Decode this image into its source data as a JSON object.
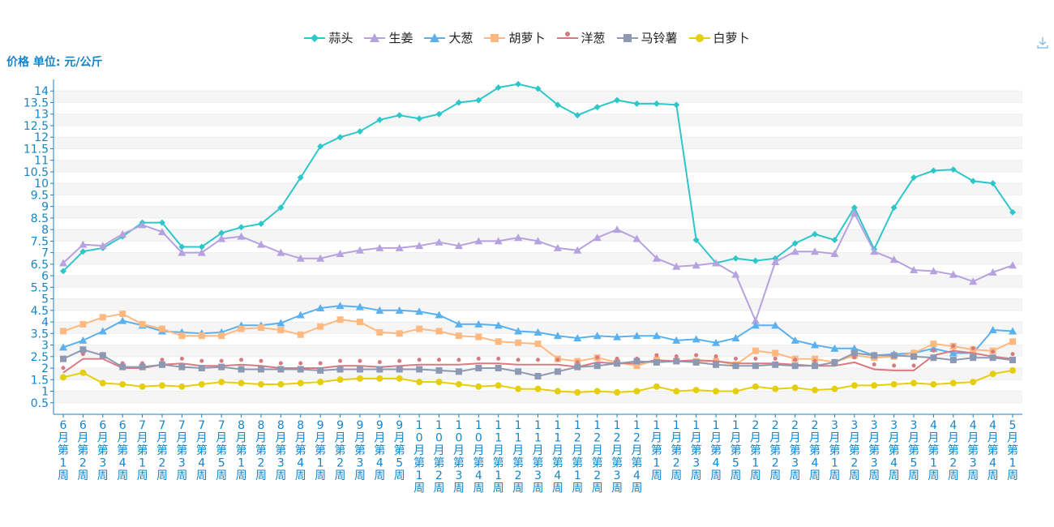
{
  "header": {
    "y_unit_label": "价格 单位: 元/公斤"
  },
  "toolbar": {
    "download_icon": "download-icon"
  },
  "chart_data": {
    "type": "line",
    "title": "",
    "xlabel": "",
    "ylabel": "价格 单位: 元/公斤",
    "ylim": [
      0,
      14.5
    ],
    "yticks": [
      0.5,
      1,
      1.5,
      2,
      2.5,
      3,
      3.5,
      4,
      4.5,
      5,
      5.5,
      6,
      6.5,
      7,
      7.5,
      8,
      8.5,
      9,
      9.5,
      10,
      10.5,
      11,
      11.5,
      12,
      12.5,
      13,
      13.5,
      14
    ],
    "grid": true,
    "legend_position": "top-center",
    "categories": [
      "6月第1周",
      "6月第2周",
      "6月第3周",
      "6月第4周",
      "7月第1周",
      "7月第2周",
      "7月第3周",
      "7月第4周",
      "7月第5周",
      "8月第1周",
      "8月第2周",
      "8月第3周",
      "8月第4周",
      "9月第1周",
      "9月第2周",
      "9月第3周",
      "9月第4周",
      "9月第5周",
      "10月第1周",
      "10月第2周",
      "10月第3周",
      "10月第4周",
      "11月第1周",
      "11月第2周",
      "11月第3周",
      "11月第4周",
      "12月第1周",
      "12月第2周",
      "12月第3周",
      "12月第4周",
      "1月第1周",
      "1月第2周",
      "1月第3周",
      "1月第4周",
      "1月第5周",
      "2月第1周",
      "2月第2周",
      "2月第3周",
      "2月第4周",
      "3月第1周",
      "3月第2周",
      "3月第3周",
      "3月第4周",
      "3月第5周",
      "4月第1周",
      "4月第2周",
      "4月第3周",
      "4月第4周",
      "5月第1周"
    ],
    "series": [
      {
        "name": "蒜头",
        "color": "#2ec7c9",
        "marker": "diamond",
        "values": [
          6.2,
          7.05,
          7.2,
          7.7,
          8.3,
          8.3,
          7.25,
          7.25,
          7.85,
          8.1,
          8.25,
          8.95,
          10.25,
          11.6,
          12.0,
          12.25,
          12.75,
          12.95,
          12.8,
          13.0,
          13.5,
          13.6,
          14.15,
          14.3,
          14.1,
          13.4,
          12.95,
          13.3,
          13.6,
          13.45,
          13.45,
          13.4,
          7.55,
          6.55,
          6.75,
          6.65,
          6.75,
          7.4,
          7.8,
          7.55,
          8.95,
          7.15,
          8.95,
          10.25,
          10.55,
          10.6,
          10.1,
          10.0,
          8.75
        ]
      },
      {
        "name": "生姜",
        "color": "#b6a2de",
        "marker": "triangle",
        "values": [
          6.55,
          7.35,
          7.3,
          7.8,
          8.2,
          7.9,
          7.0,
          7.0,
          7.6,
          7.7,
          7.35,
          7.0,
          6.75,
          6.75,
          6.95,
          7.1,
          7.2,
          7.2,
          7.3,
          7.45,
          7.3,
          7.5,
          7.5,
          7.65,
          7.5,
          7.2,
          7.1,
          7.65,
          8.0,
          7.6,
          6.75,
          6.4,
          6.45,
          6.55,
          6.05,
          4.05,
          6.6,
          7.05,
          7.05,
          6.95,
          8.7,
          7.05,
          6.7,
          6.25,
          6.2,
          6.05,
          5.75,
          6.15,
          6.45
        ]
      },
      {
        "name": "大葱",
        "color": "#5ab1ef",
        "marker": "triangle",
        "values": [
          2.9,
          3.2,
          3.6,
          4.05,
          3.85,
          3.6,
          3.55,
          3.5,
          3.55,
          3.85,
          3.85,
          3.95,
          4.3,
          4.6,
          4.7,
          4.65,
          4.5,
          4.5,
          4.45,
          4.3,
          3.9,
          3.9,
          3.85,
          3.6,
          3.55,
          3.4,
          3.3,
          3.4,
          3.35,
          3.4,
          3.4,
          3.2,
          3.25,
          3.1,
          3.3,
          3.85,
          3.85,
          3.2,
          3.0,
          2.85,
          2.85,
          2.55,
          2.6,
          2.65,
          2.85,
          2.65,
          2.65,
          3.65,
          3.6
        ]
      },
      {
        "name": "胡萝卜",
        "color": "#ffb980",
        "marker": "square",
        "values": [
          3.6,
          3.9,
          4.2,
          4.35,
          3.9,
          3.7,
          3.4,
          3.4,
          3.4,
          3.7,
          3.75,
          3.65,
          3.45,
          3.8,
          4.1,
          4.0,
          3.55,
          3.5,
          3.7,
          3.6,
          3.4,
          3.35,
          3.15,
          3.1,
          3.05,
          2.4,
          2.3,
          2.45,
          2.25,
          2.1,
          2.35,
          2.3,
          2.3,
          2.3,
          2.15,
          2.75,
          2.65,
          2.4,
          2.4,
          2.25,
          2.55,
          2.45,
          2.5,
          2.65,
          3.05,
          2.95,
          2.8,
          2.75,
          3.15
        ]
      },
      {
        "name": "洋葱",
        "color": "#d87a80",
        "marker": "pin",
        "values": [
          1.8,
          2.4,
          2.4,
          2.0,
          2.0,
          2.15,
          2.2,
          2.1,
          2.1,
          2.15,
          2.1,
          2.0,
          2.0,
          2.0,
          2.1,
          2.1,
          2.05,
          2.1,
          2.15,
          2.15,
          2.15,
          2.2,
          2.2,
          2.15,
          2.15,
          2.15,
          2.05,
          2.25,
          2.2,
          2.2,
          2.35,
          2.3,
          2.35,
          2.3,
          2.2,
          2.2,
          2.2,
          2.15,
          2.1,
          2.1,
          2.25,
          1.95,
          1.9,
          1.9,
          2.55,
          2.75,
          2.65,
          2.5,
          2.4
        ]
      },
      {
        "name": "马铃薯",
        "color": "#8d98b3",
        "marker": "square",
        "values": [
          2.4,
          2.8,
          2.55,
          2.05,
          2.05,
          2.15,
          2.05,
          2.0,
          2.05,
          1.95,
          1.95,
          1.95,
          1.95,
          1.9,
          1.95,
          1.95,
          1.95,
          1.95,
          1.95,
          1.9,
          1.85,
          2.0,
          2.0,
          1.85,
          1.65,
          1.85,
          2.05,
          2.1,
          2.2,
          2.3,
          2.25,
          2.3,
          2.25,
          2.15,
          2.1,
          2.1,
          2.15,
          2.1,
          2.1,
          2.25,
          2.65,
          2.55,
          2.55,
          2.5,
          2.45,
          2.35,
          2.45,
          2.45,
          2.35
        ]
      },
      {
        "name": "白萝卜",
        "color": "#e5cf0d",
        "marker": "circle",
        "values": [
          1.6,
          1.8,
          1.35,
          1.3,
          1.2,
          1.25,
          1.2,
          1.3,
          1.4,
          1.35,
          1.3,
          1.3,
          1.35,
          1.4,
          1.5,
          1.55,
          1.55,
          1.55,
          1.4,
          1.4,
          1.3,
          1.2,
          1.25,
          1.1,
          1.1,
          1.0,
          0.95,
          1.0,
          0.95,
          1.0,
          1.2,
          1.0,
          1.05,
          1.0,
          1.0,
          1.2,
          1.1,
          1.15,
          1.05,
          1.1,
          1.25,
          1.25,
          1.3,
          1.35,
          1.3,
          1.35,
          1.4,
          1.75,
          1.9
        ]
      }
    ]
  }
}
